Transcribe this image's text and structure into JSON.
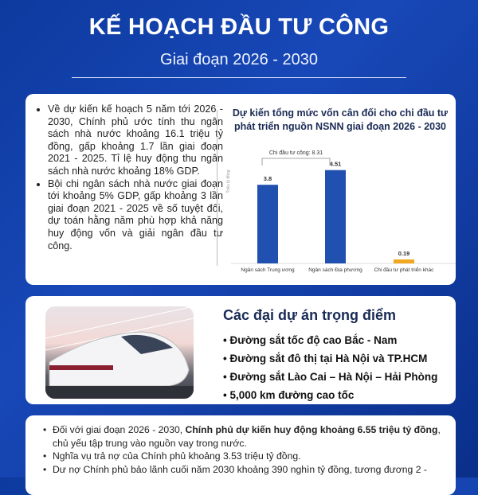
{
  "header": {
    "title": "KẾ HOẠCH ĐẦU TƯ CÔNG",
    "subtitle": "Giai đoạn 2026 - 2030"
  },
  "intro": {
    "bullets": [
      "Về dự kiến kế hoạch 5 năm tới 2026 - 2030, Chính phủ ước tính thu ngân sách nhà nước khoảng 16.1 triệu tỷ đồng, gấp khoảng 1.7 lần giai đoạn 2021 - 2025. Tỉ lệ huy động thu ngân sách nhà nước khoảng 18% GDP.",
      "Bội chi ngân sách nhà nước giai đoạn tới khoảng 5% GDP, gấp khoảng 3 lần giai đoạn 2021 - 2025 về số tuyệt đối, dự toán hằng năm phù hợp khả năng huy động vốn và giải ngân đầu tư công."
    ]
  },
  "chart_data": {
    "type": "bar",
    "title": "Dự kiến tổng mức vốn cân đối cho chi đầu tư phát triển nguồn NSNN giai đoạn 2026 - 2030",
    "ylabel": "Triệu tỷ đồng",
    "categories": [
      "Ngân sách Trung ương",
      "Ngân sách Địa phương",
      "Chi đầu tư phát triển khác"
    ],
    "values": [
      3.8,
      4.51,
      0.19
    ],
    "data_labels": [
      "3.8",
      "4.51",
      "0.19"
    ],
    "colors": [
      "#2050b0",
      "#2050b0",
      "#f0a820"
    ],
    "annotation": "Chi đầu tư công: 8.31",
    "ylim": [
      0,
      5
    ],
    "grid": false
  },
  "projects": {
    "title": "Các đại dự án trọng điểm",
    "items": [
      "Đường sắt tốc độ cao Bắc - Nam",
      "Đường sắt đô thị tại Hà Nội và TP.HCM",
      "Đường sắt Lào Cai – Hà Nội – Hải Phòng",
      "5,000 km đường cao tốc"
    ]
  },
  "debt": {
    "bullets": [
      {
        "pre": "Đối với giai đoạn 2026 - 2030, ",
        "bold": "Chính phủ dự kiến huy động khoảng 6.55 triệu tỷ đồng",
        "post": ", chủ yếu tập trung vào nguồn vay trong nước."
      },
      {
        "pre": "Nghĩa vụ trả nợ của Chính phủ khoảng 3.53 triệu tỷ đồng.",
        "bold": "",
        "post": ""
      },
      {
        "pre": "Dư nợ Chính phủ bảo lãnh cuối năm 2030 khoảng 390 nghìn tỷ đồng, tương đương 2 -",
        "bold": "",
        "post": ""
      }
    ]
  }
}
